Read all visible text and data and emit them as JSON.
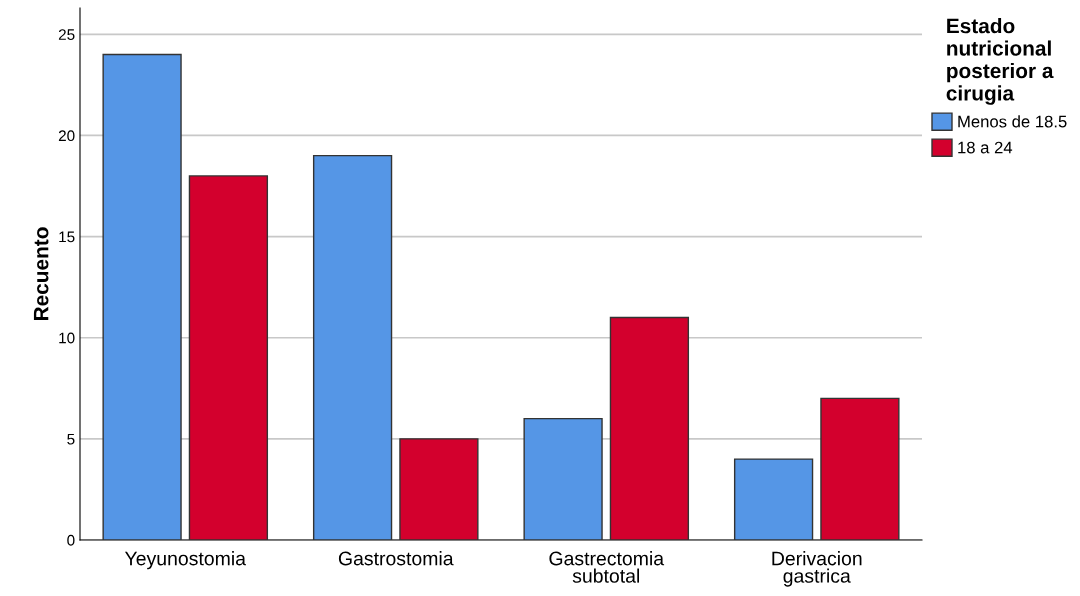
{
  "chart_data": {
    "type": "bar",
    "ylabel": "Recuento",
    "legend_title": "Estado nutricional posterior a cirugia",
    "categories": [
      "Yeyunostomia",
      "Gastrostomia",
      "Gastrectomia subtotal",
      "Derivacion gastrica"
    ],
    "series": [
      {
        "name": "Menos de 18.5",
        "color": "#5596e6",
        "values": [
          24,
          19,
          6,
          4
        ]
      },
      {
        "name": "18 a 24",
        "color": "#d3002d",
        "values": [
          18,
          5,
          11,
          7
        ]
      }
    ],
    "ylim": [
      0,
      26.3
    ],
    "yticks": [
      0,
      5,
      10,
      15,
      20,
      25
    ],
    "grid": "y",
    "legend": "top right"
  }
}
